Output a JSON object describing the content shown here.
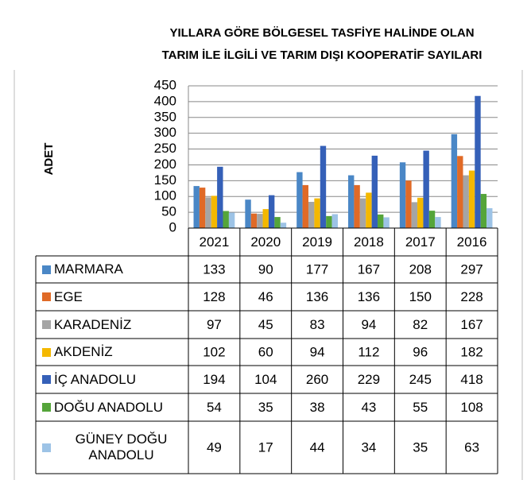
{
  "chart_data": {
    "type": "bar",
    "title": [
      "YILLARA GÖRE BÖLGESEL TASFİYE HALİNDE OLAN",
      "TARIM İLE İLGİLİ VE TARIM DIŞI KOOPERATİF SAYILARI"
    ],
    "ylabel": "ADET",
    "categories": [
      "2021",
      "2020",
      "2019",
      "2018",
      "2017",
      "2016"
    ],
    "ylim": [
      0,
      450
    ],
    "yticks": [
      0,
      50,
      100,
      150,
      200,
      250,
      300,
      350,
      400,
      450
    ],
    "grid": true,
    "series": [
      {
        "name": "MARMARA",
        "color": "#4a87c6",
        "values": [
          133,
          90,
          177,
          167,
          208,
          297
        ]
      },
      {
        "name": "EGE",
        "color": "#e06a27",
        "values": [
          128,
          46,
          136,
          136,
          150,
          228
        ]
      },
      {
        "name": "KARADENİZ",
        "color": "#a5a5a5",
        "values": [
          97,
          45,
          83,
          94,
          82,
          167
        ]
      },
      {
        "name": "AKDENİZ",
        "color": "#f4b800",
        "values": [
          102,
          60,
          94,
          112,
          96,
          182
        ]
      },
      {
        "name": "İÇ ANADOLU",
        "color": "#3560b8",
        "values": [
          194,
          104,
          260,
          229,
          245,
          418
        ]
      },
      {
        "name": "DOĞU ANADOLU",
        "color": "#55a53a",
        "values": [
          54,
          35,
          38,
          43,
          55,
          108
        ]
      },
      {
        "name": "GÜNEY DOĞU ANADOLU",
        "color": "#9dc3e6",
        "values": [
          49,
          17,
          44,
          34,
          35,
          63
        ]
      }
    ]
  }
}
